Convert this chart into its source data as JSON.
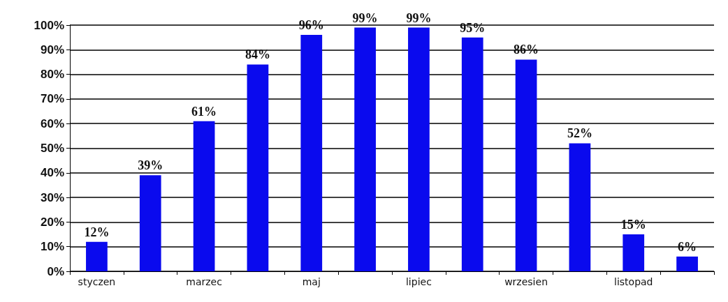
{
  "chart_data": {
    "type": "bar",
    "categories": [
      "styczen",
      null,
      "marzec",
      null,
      "maj",
      null,
      "lipiec",
      null,
      "wrzesien",
      null,
      "listopad",
      null
    ],
    "values": [
      12,
      39,
      61,
      84,
      96,
      99,
      99,
      95,
      86,
      52,
      15,
      6
    ],
    "value_labels": [
      "12%",
      "39%",
      "61%",
      "84%",
      "96%",
      "99%",
      "99%",
      "95%",
      "86%",
      "52%",
      "15%",
      "6%"
    ],
    "color": "#0a0aee",
    "ylim": [
      0,
      100
    ],
    "yticks": [
      {
        "value": 0,
        "label": "0%"
      },
      {
        "value": 10,
        "label": "10%"
      },
      {
        "value": 20,
        "label": "20%"
      },
      {
        "value": 30,
        "label": "30%"
      },
      {
        "value": 40,
        "label": "40%"
      },
      {
        "value": 50,
        "label": "50%"
      },
      {
        "value": 60,
        "label": "60%"
      },
      {
        "value": 70,
        "label": "70%"
      },
      {
        "value": 80,
        "label": "80%"
      },
      {
        "value": 90,
        "label": "90%"
      },
      {
        "value": 100,
        "label": "100%"
      }
    ],
    "grid": "y"
  }
}
